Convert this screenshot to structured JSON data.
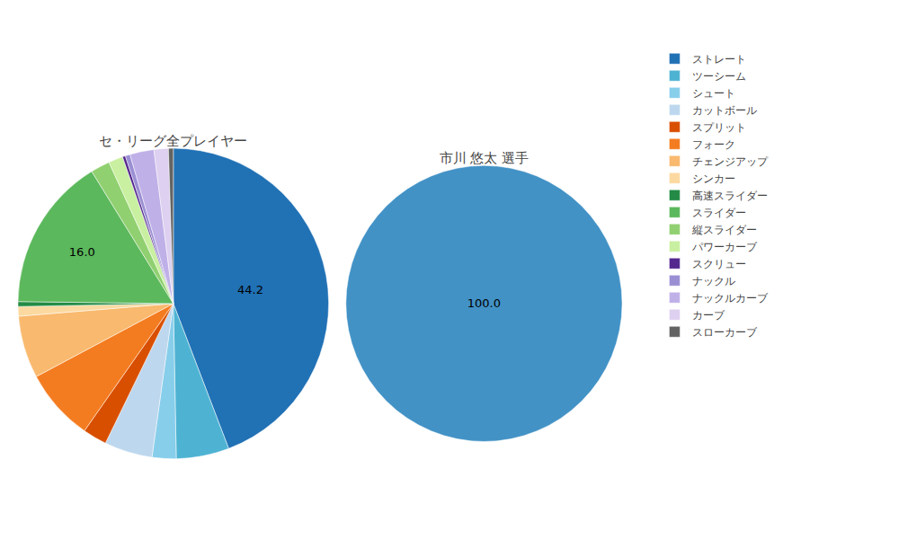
{
  "chart_data": [
    {
      "type": "pie",
      "title": "セ・リーグ全プレイヤー",
      "categories": [
        "ストレート",
        "ツーシーム",
        "シュート",
        "カットボール",
        "スプリット",
        "フォーク",
        "チェンジアップ",
        "シンカー",
        "高速スライダー",
        "スライダー",
        "縦スライダー",
        "パワーカーブ",
        "スクリュー",
        "ナックル",
        "ナックルカーブ",
        "カーブ",
        "スローカーブ"
      ],
      "values": [
        44.2,
        5.5,
        2.5,
        5.0,
        2.5,
        7.5,
        6.5,
        1.0,
        0.5,
        16.0,
        2.0,
        1.5,
        0.3,
        0.5,
        2.5,
        1.5,
        0.5
      ],
      "value_labels": [
        "44.2",
        null,
        null,
        null,
        null,
        null,
        null,
        null,
        null,
        "16.0",
        null,
        null,
        null,
        null,
        null,
        null,
        null
      ],
      "colors": [
        "#2171b5",
        "#4eb3d3",
        "#87ceeb",
        "#bdd7ee",
        "#d94f00",
        "#f47c20",
        "#f9b96e",
        "#fcd9a0",
        "#238b45",
        "#5cb85c",
        "#90d070",
        "#c8f0a0",
        "#54278f",
        "#9b8fd4",
        "#c0b0e8",
        "#ddd0f0",
        "#636363"
      ],
      "legend": "right"
    },
    {
      "type": "pie",
      "title": "市川 悠太 選手",
      "values": [
        100.0
      ],
      "value_labels": [
        "100.0"
      ],
      "colors": [
        "#4292c6"
      ]
    }
  ]
}
